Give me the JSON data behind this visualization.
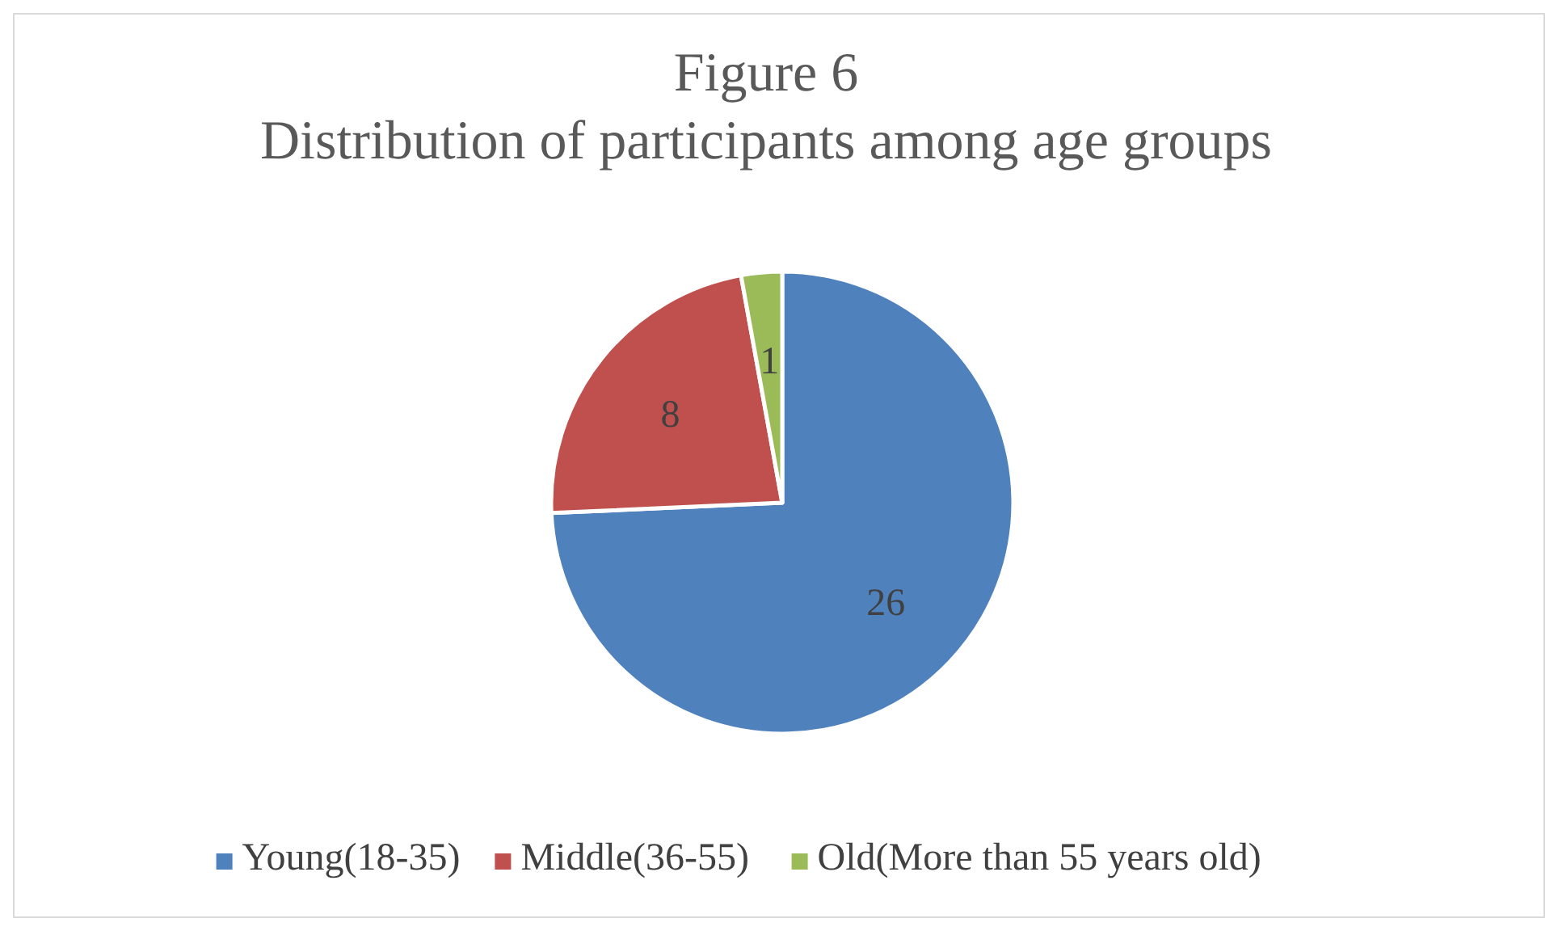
{
  "chart_data": {
    "type": "pie",
    "title": "Figure 6",
    "subtitle": "Distribution of participants among age groups",
    "categories": [
      "Young(18-35)",
      "Middle(36-55)",
      "Old(More than 55 years old)"
    ],
    "values": [
      26,
      8,
      1
    ],
    "colors": [
      "#4f81bd",
      "#c0504d",
      "#9bbb59"
    ],
    "data_labels": true,
    "legend": "bottom"
  }
}
